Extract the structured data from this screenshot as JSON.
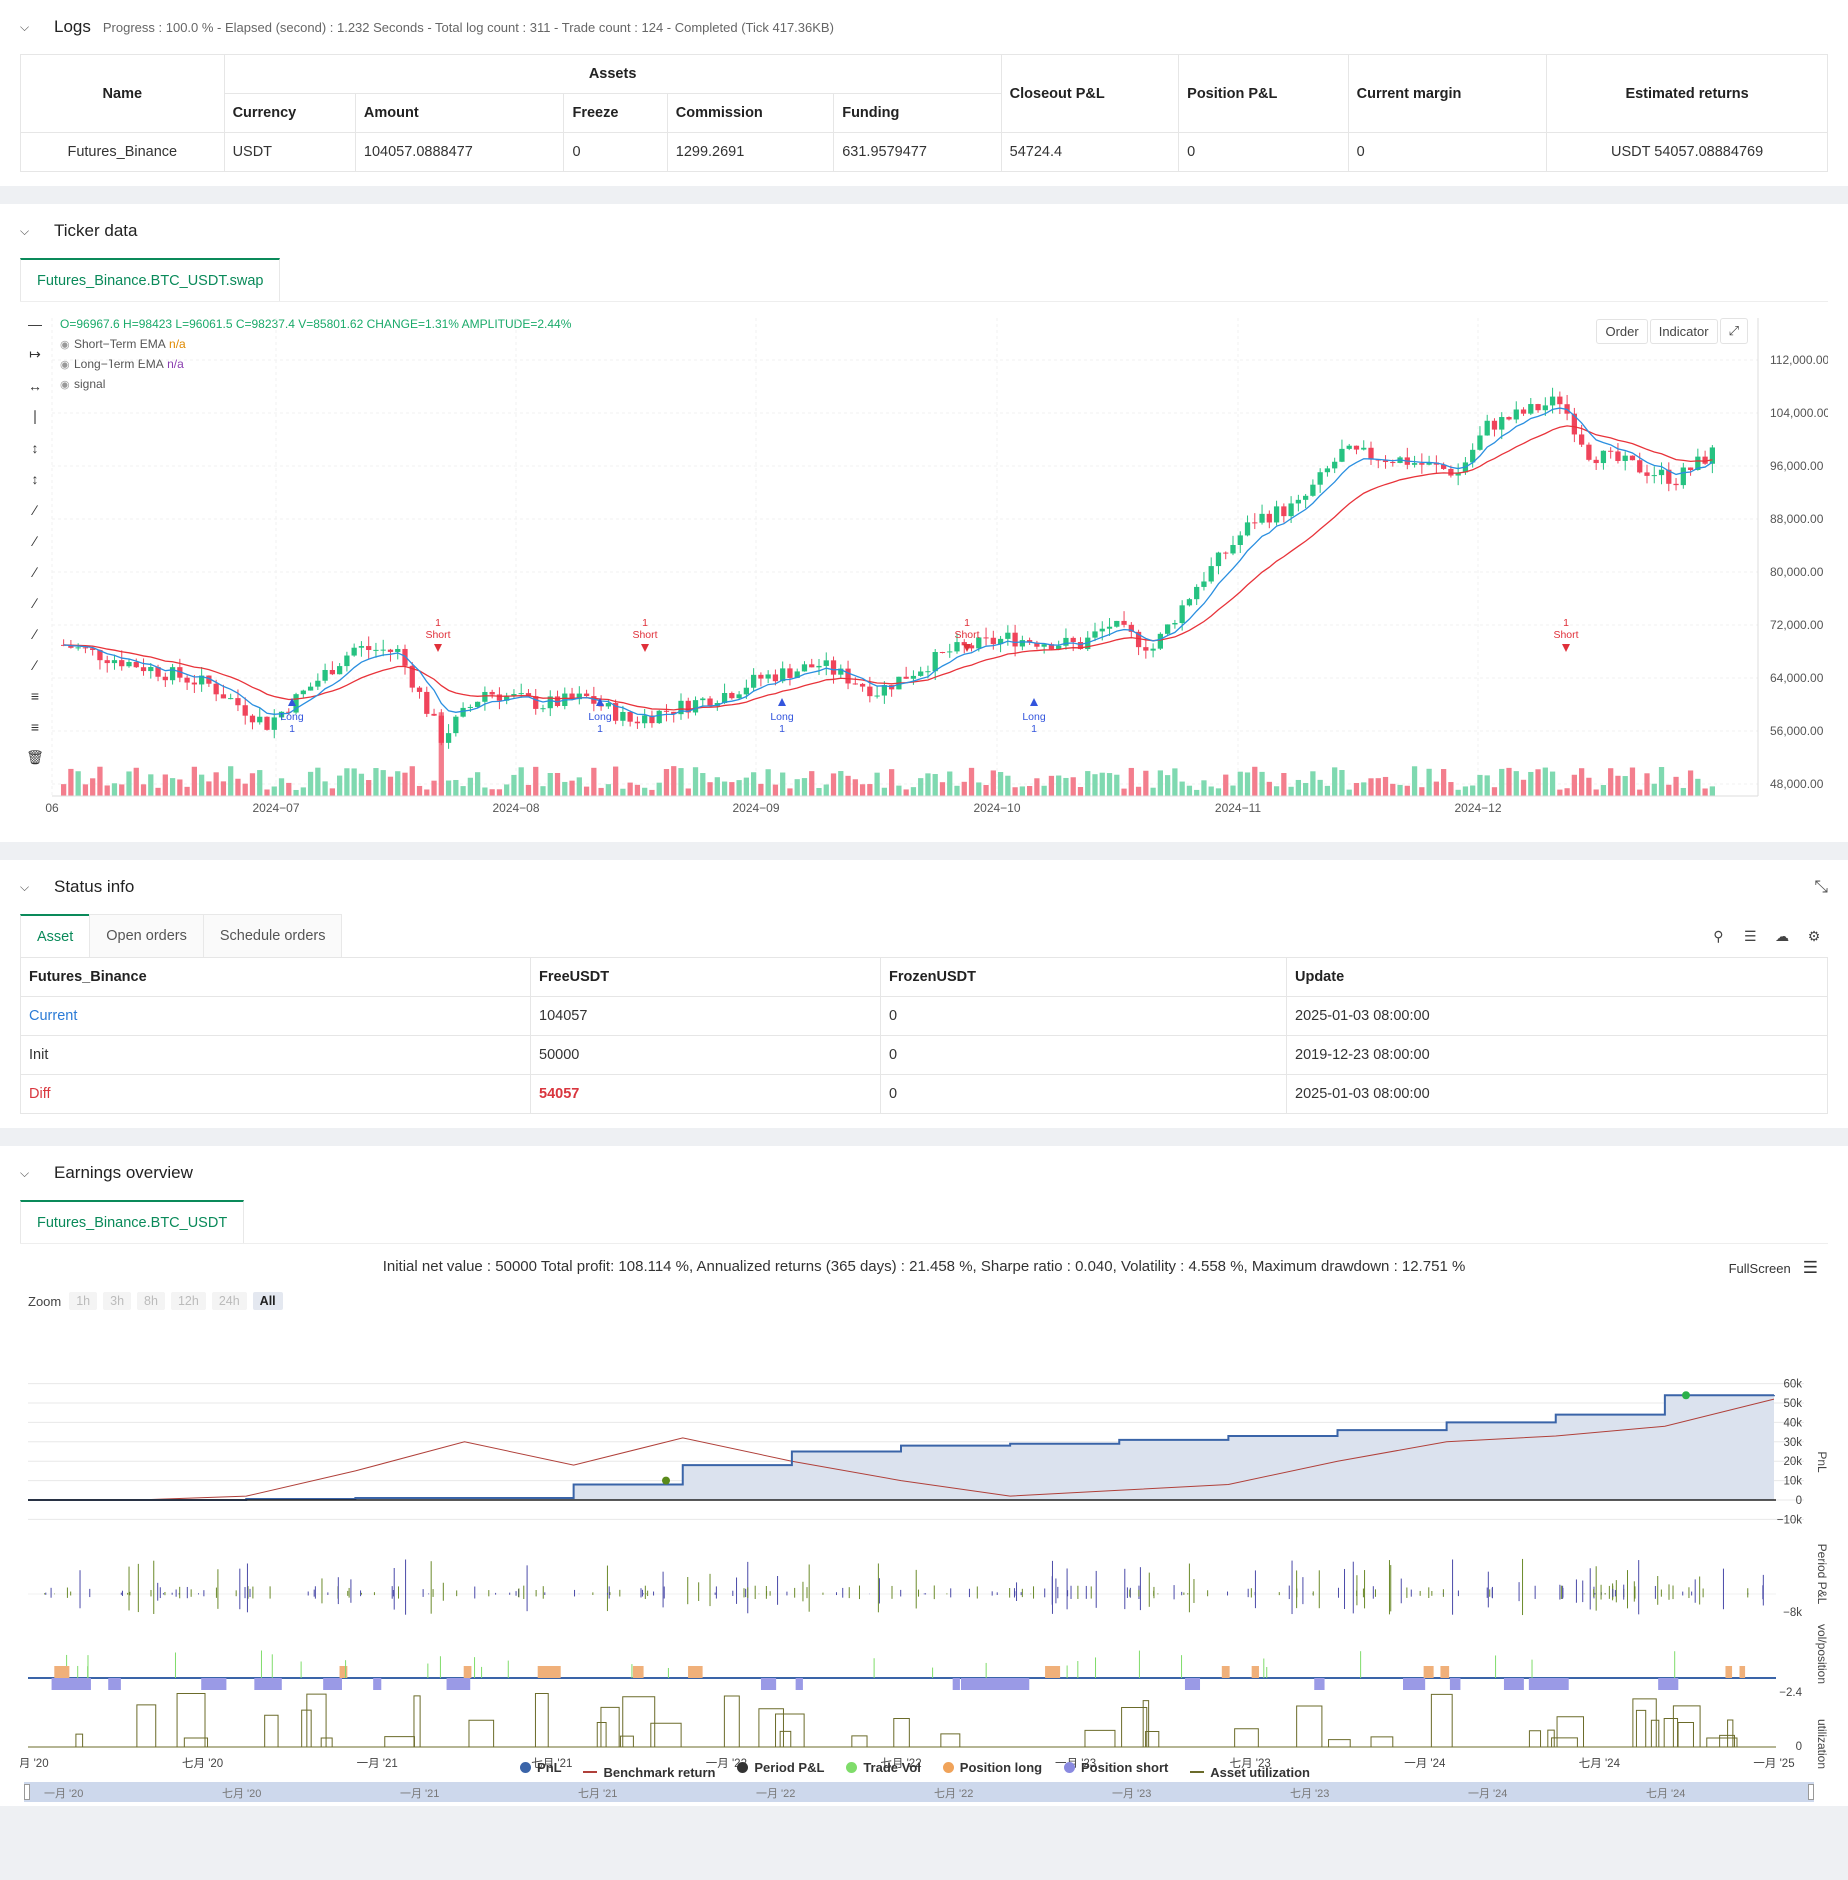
{
  "logs": {
    "title": "Logs",
    "summary": "Progress : 100.0 % - Elapsed (second) : 1.232  Seconds - Total log count : 311 - Trade count : 124 - Completed (Tick 417.36KB)"
  },
  "assets_table": {
    "headers": {
      "name": "Name",
      "assets": "Assets",
      "currency": "Currency",
      "amount": "Amount",
      "freeze": "Freeze",
      "commission": "Commission",
      "funding": "Funding",
      "closeout": "Closeout P&L",
      "position": "Position P&L",
      "margin": "Current margin",
      "estimated": "Estimated returns"
    },
    "row": {
      "name": "Futures_Binance",
      "currency": "USDT",
      "amount": "104057.0888477",
      "freeze": "0",
      "commission": "1299.2691",
      "funding": "631.9579477",
      "closeout": "54724.4",
      "position": "0",
      "margin": "0",
      "estimated": "USDT 54057.08884769"
    }
  },
  "ticker": {
    "title": "Ticker data",
    "tab": "Futures_Binance.BTC_USDT.swap",
    "ohlc": "O=96967.6 H=98423 L=96061.5 C=98237.4 V=85801.62 CHANGE=1.31% AMPLITUDE=2.44%",
    "legend": [
      {
        "label": "Short−Term EMA",
        "value": "n/a",
        "color": "#e08a00"
      },
      {
        "label": "Long−Term EMA",
        "value": "n/a",
        "color": "#8a3fb0"
      },
      {
        "label": "signal",
        "value": "",
        "color": "#555555"
      }
    ],
    "buttons": {
      "order": "Order",
      "indicator": "Indicator"
    },
    "y_ticks": [
      "112,000.00",
      "104,000.00",
      "96,000.00",
      "88,000.00",
      "80,000.00",
      "72,000.00",
      "64,000.00",
      "56,000.00",
      "48,000.00"
    ],
    "x_ticks": [
      "06",
      "2024−07",
      "2024−08",
      "2024−09",
      "2024−10",
      "2024−11",
      "2024−12"
    ],
    "signals": [
      {
        "type": "Long",
        "qty": "1"
      },
      {
        "type": "Short",
        "qty": "1"
      },
      {
        "type": "Long",
        "qty": "1"
      },
      {
        "type": "Short",
        "qty": "1"
      },
      {
        "type": "Long",
        "qty": "1"
      },
      {
        "type": "Short",
        "qty": "1"
      },
      {
        "type": "Long",
        "qty": "1"
      },
      {
        "type": "Short",
        "qty": "1"
      }
    ]
  },
  "status": {
    "title": "Status info",
    "tabs": [
      "Asset",
      "Open orders",
      "Schedule orders"
    ],
    "headers": [
      "Futures_Binance",
      "FreeUSDT",
      "FrozenUSDT",
      "Update"
    ],
    "rows": [
      {
        "label": "Current",
        "free": "104057",
        "frozen": "0",
        "update": "2025-01-03 08:00:00"
      },
      {
        "label": "Init",
        "free": "50000",
        "frozen": "0",
        "update": "2019-12-23 08:00:00"
      },
      {
        "label": "Diff",
        "free": "54057",
        "frozen": "0",
        "update": "2025-01-03 08:00:00"
      }
    ]
  },
  "earnings": {
    "title": "Earnings overview",
    "tab": "Futures_Binance.BTC_USDT",
    "summary": "Initial net value : 50000  Total profit: 108.114 %, Annualized returns (365 days) : 21.458 %, Sharpe ratio : 0.040, Volatility : 4.558 %, Maximum drawdown : 12.751 %",
    "fullscreen": "FullScreen",
    "zoom_label": "Zoom",
    "zoom": [
      "1h",
      "3h",
      "8h",
      "12h",
      "24h",
      "All"
    ],
    "pnl_ticks": [
      "60k",
      "50k",
      "40k",
      "30k",
      "20k",
      "10k",
      "0",
      "−10k"
    ],
    "axis_labels": [
      "PnL",
      "Period P&L",
      "vol/position",
      "utilization"
    ],
    "period_tick": "−8k",
    "vol_tick": "−2.4",
    "util_tick": "0",
    "x_ticks": [
      "一月 '20",
      "七月 '20",
      "一月 '21",
      "七月 '21",
      "一月 '22",
      "七月 '22",
      "一月 '23",
      "七月 '23",
      "一月 '24",
      "七月 '24",
      "一月 '25"
    ],
    "nav_ticks": [
      "一月 '20",
      "七月 '20",
      "一月 '21",
      "七月 '21",
      "一月 '22",
      "七月 '22",
      "一月 '23",
      "七月 '23",
      "一月 '24",
      "七月 '24"
    ],
    "legend": [
      {
        "label": "PnL",
        "color": "#3a64a8",
        "kind": "dot"
      },
      {
        "label": "Benchmark return",
        "color": "#b0403a",
        "kind": "dash"
      },
      {
        "label": "Period P&L",
        "color": "#333333",
        "kind": "dot"
      },
      {
        "label": "Trade Vol",
        "color": "#7fdc6a",
        "kind": "dot"
      },
      {
        "label": "Position long",
        "color": "#f0a35a",
        "kind": "dot"
      },
      {
        "label": "Position short",
        "color": "#8a8ae0",
        "kind": "dot"
      },
      {
        "label": "Asset utilization",
        "color": "#6b6b2a",
        "kind": "dash"
      }
    ]
  },
  "chart_data": {
    "type": "line",
    "title": "",
    "x_range": [
      "一月 '20",
      "一月 '25"
    ],
    "ylim": [
      -10000,
      60000
    ],
    "series": [
      {
        "name": "PnL",
        "values": [
          0,
          0,
          500,
          1000,
          1000,
          8000,
          18000,
          25000,
          28000,
          29000,
          31000,
          33000,
          36000,
          40000,
          44000,
          54000,
          54057
        ]
      },
      {
        "name": "Benchmark return",
        "values": [
          0,
          0,
          2000,
          15000,
          30000,
          18000,
          32000,
          20000,
          10000,
          2000,
          5000,
          8000,
          20000,
          30000,
          33000,
          38000,
          52000
        ]
      }
    ]
  }
}
